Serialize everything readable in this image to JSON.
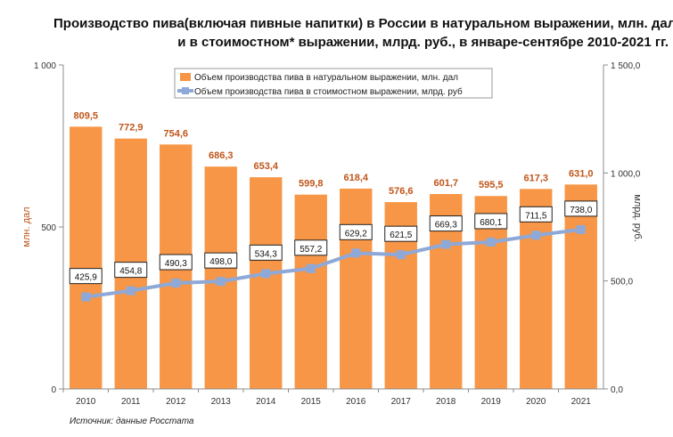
{
  "title": {
    "line1": "Производство пива(включая пивные напитки) в России в натуральном выражении, млн. дал",
    "line2": "и в стоимостном* выражении, млрд. руб., в январе-сентябре 2010-2021 гг."
  },
  "source": "Источник: данные Росстата",
  "colors": {
    "bar": "#F79646",
    "line": "#8EA9D8",
    "bar_label": "#C0561B",
    "left_axis_label": "#C0561B"
  },
  "chart_data": {
    "type": "bar",
    "categories": [
      "2010",
      "2011",
      "2012",
      "2013",
      "2014",
      "2015",
      "2016",
      "2017",
      "2018",
      "2019",
      "2020",
      "2021"
    ],
    "series": [
      {
        "name": "Объем производства пива в натуральном выражении, млн. дал",
        "type": "bar",
        "axis": "left",
        "values": [
          809.5,
          772.9,
          754.6,
          686.3,
          653.4,
          599.8,
          618.4,
          576.6,
          601.7,
          595.5,
          617.3,
          631.0
        ],
        "labels": [
          "809,5",
          "772,9",
          "754,6",
          "686,3",
          "653,4",
          "599,8",
          "618,4",
          "576,6",
          "601,7",
          "595,5",
          "617,3",
          "631,0"
        ]
      },
      {
        "name": "Объем производства пива в стоимостном выражении, млрд. руб",
        "type": "line",
        "axis": "right",
        "values": [
          425.9,
          454.8,
          490.3,
          498.0,
          534.3,
          557.2,
          629.2,
          621.5,
          669.3,
          680.1,
          711.5,
          738.0
        ],
        "labels": [
          "425,9",
          "454,8",
          "490,3",
          "498,0",
          "534,3",
          "557,2",
          "629,2",
          "621,5",
          "669,3",
          "680,1",
          "711,5",
          "738,0"
        ]
      }
    ],
    "y_left": {
      "label": "млн. дал",
      "range": [
        0,
        1000
      ],
      "ticks": [
        0,
        500,
        1000
      ],
      "tick_labels": [
        "0",
        "500",
        "1 000"
      ]
    },
    "y_right": {
      "label": "млрд. руб.",
      "range": [
        0,
        1500
      ],
      "ticks": [
        0,
        500,
        1000,
        1500
      ],
      "tick_labels": [
        "0,0",
        "500,0",
        "1 000,0",
        "1 500,0"
      ]
    },
    "grid": false,
    "legend_position": "top-center"
  }
}
